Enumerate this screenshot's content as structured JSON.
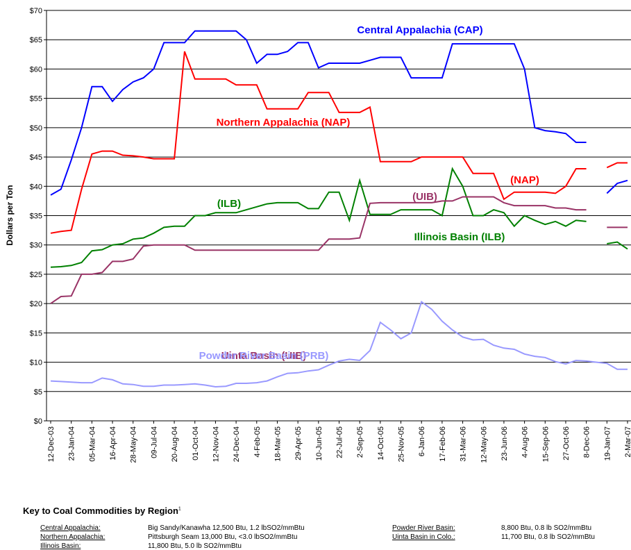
{
  "chart_data": {
    "type": "line",
    "y_label": "Dollars per Ton",
    "ylim": [
      0,
      70
    ],
    "yticks": [
      {
        "value": 0,
        "label": "$0"
      },
      {
        "value": 5,
        "label": "$5"
      },
      {
        "value": 10,
        "label": "$10"
      },
      {
        "value": 15,
        "label": "$15"
      },
      {
        "value": 20,
        "label": "$20"
      },
      {
        "value": 25,
        "label": "$25"
      },
      {
        "value": 30,
        "label": "$30"
      },
      {
        "value": 35,
        "label": "$35"
      },
      {
        "value": 40,
        "label": "$40"
      },
      {
        "value": 45,
        "label": "$45"
      },
      {
        "value": 50,
        "label": "$50"
      },
      {
        "value": 55,
        "label": "$55"
      },
      {
        "value": 60,
        "label": "$60"
      },
      {
        "value": 65,
        "label": "$65"
      },
      {
        "value": 70,
        "label": "$70"
      }
    ],
    "grid": true,
    "categories": [
      "12-Dec-03",
      null,
      "23-Jan-04",
      null,
      "05-Mar-04",
      null,
      "16-Apr-04",
      null,
      "28-May-04",
      null,
      "09-Jul-04",
      null,
      "20-Aug-04",
      null,
      "01-Oct-04",
      null,
      "12-Nov-04",
      null,
      "24-Dec-04",
      null,
      "4-Feb-05",
      null,
      "18-Mar-05",
      null,
      "29-Apr-05",
      null,
      "10-Jun-05",
      null,
      "22-Jul-05",
      null,
      "2-Sep-05",
      null,
      "14-Oct-05",
      null,
      "25-Nov-05",
      null,
      "6-Jan-06",
      null,
      "17-Feb-06",
      null,
      "31-Mar-06",
      null,
      "12-May-06",
      null,
      "23-Jun-06",
      null,
      "4-Aug-06",
      null,
      "15-Sep-06",
      null,
      "27-Oct-06",
      null,
      "8-Dec-06",
      null,
      "19-Jan-07",
      null,
      "2-Mar-07"
    ],
    "series": [
      {
        "name": "Central Appalachia (CAP)",
        "color": "#0000ff",
        "values": [
          38.5,
          39.5,
          44.5,
          50,
          57,
          57,
          54.5,
          56.5,
          57.8,
          58.5,
          60,
          64.5,
          64.5,
          64.5,
          66.5,
          66.5,
          66.5,
          66.5,
          66.5,
          65,
          61,
          62.5,
          62.5,
          63,
          64.5,
          64.5,
          60.2,
          61,
          61,
          61,
          61,
          61.5,
          62,
          62,
          62,
          58.5,
          58.5,
          58.5,
          58.5,
          64.3,
          64.3,
          64.3,
          64.3,
          64.3,
          64.3,
          64.3,
          60,
          50,
          49.5,
          49.3,
          49,
          47.5,
          47.5,
          null,
          38.8,
          40.5,
          41
        ]
      },
      {
        "name": "Northern Appalachia (NAP)",
        "color": "#ff0000",
        "values": [
          32,
          32.3,
          32.5,
          39.5,
          45.5,
          46,
          46,
          45.3,
          45.2,
          45,
          44.7,
          44.7,
          44.7,
          63,
          58.3,
          58.3,
          58.3,
          58.3,
          57.3,
          57.3,
          57.3,
          53.2,
          53.2,
          53.2,
          53.2,
          56,
          56,
          56,
          52.6,
          52.6,
          52.6,
          53.5,
          44.2,
          44.2,
          44.2,
          44.2,
          45,
          45,
          45,
          45,
          45,
          42.2,
          42.2,
          42.2,
          37.8,
          39,
          39,
          39,
          39,
          38.8,
          40,
          43,
          43,
          null,
          43.2,
          44,
          44
        ]
      },
      {
        "name": "Illinois Basin (ILB)",
        "color": "#008000",
        "values": [
          26.2,
          26.3,
          26.5,
          27,
          29,
          29.2,
          30,
          30.2,
          31,
          31.2,
          32,
          33,
          33.2,
          33.2,
          35,
          35,
          35.5,
          35.5,
          35.5,
          36,
          36.5,
          37,
          37.2,
          37.2,
          37.2,
          36.2,
          36.2,
          39,
          39,
          34.2,
          41,
          35.2,
          35.2,
          35.2,
          36,
          36,
          36,
          36,
          35,
          43,
          40,
          35,
          35,
          36,
          35.5,
          33.2,
          35,
          34.2,
          33.5,
          34,
          33.2,
          34.2,
          34,
          null,
          30.2,
          30.5,
          29.3
        ]
      },
      {
        "name": "Uinta Basin (UIB)",
        "color": "#993366",
        "values": [
          20,
          21.2,
          21.3,
          25,
          25,
          25.3,
          27.2,
          27.2,
          27.6,
          29.8,
          30,
          30,
          30,
          30,
          29.1,
          29.1,
          29.1,
          29.1,
          29.1,
          29.1,
          29.1,
          29.1,
          29.1,
          29.1,
          29.1,
          29.1,
          29.1,
          31,
          31,
          31,
          31.2,
          37.1,
          37.2,
          37.2,
          37.2,
          37.2,
          37.2,
          37.2,
          37.5,
          37.5,
          38.2,
          38.2,
          38.2,
          38.2,
          37.2,
          36.7,
          36.7,
          36.7,
          36.7,
          36.3,
          36.3,
          36,
          36,
          null,
          33,
          33,
          33
        ]
      },
      {
        "name": "Powder River Basin (PRB)",
        "color": "#9999ff",
        "values": [
          6.8,
          6.7,
          6.6,
          6.5,
          6.5,
          7.3,
          7,
          6.3,
          6.2,
          5.9,
          5.9,
          6.1,
          6.1,
          6.2,
          6.3,
          6.1,
          5.8,
          5.9,
          6.4,
          6.4,
          6.5,
          6.8,
          7.5,
          8.1,
          8.2,
          8.5,
          8.7,
          9.5,
          10.2,
          10.5,
          10.3,
          12,
          16.8,
          15.5,
          14,
          15,
          20.3,
          19,
          17,
          15.5,
          14.3,
          13.8,
          13.9,
          12.9,
          12.4,
          12.2,
          11.4,
          11,
          10.8,
          10.1,
          9.7,
          10.3,
          10.2,
          10,
          9.8,
          8.8,
          8.8
        ]
      }
    ],
    "annotations": [
      {
        "text": "(NAP)",
        "color": "#ff0000"
      },
      {
        "text": "(ILB)",
        "color": "#008000"
      },
      {
        "text": "(UIB)",
        "color": "#993366"
      }
    ]
  },
  "key": {
    "title": "Key to Coal Commodities by Region",
    "footnote": "1",
    "entries": [
      {
        "region": "Central Appalachia:",
        "spec": "Big Sandy/Kanawha 12,500 Btu, 1.2 lbSO2/mmBtu"
      },
      {
        "region": "Northern Appalachia:",
        "spec": "Pittsburgh Seam 13,000 Btu, <3.0 lbSO2/mmBtu"
      },
      {
        "region": "Illinois Basin:",
        "spec": "11,800 Btu, 5.0 lb SO2/mmBtu"
      },
      {
        "region": "Powder River Basin:",
        "spec": "8,800 Btu, 0.8 lb SO2/mmBtu"
      },
      {
        "region": "Uinta Basin in Colo.:",
        "spec": "11,700 Btu, 0.8 lb SO2/mmBtu"
      }
    ]
  }
}
